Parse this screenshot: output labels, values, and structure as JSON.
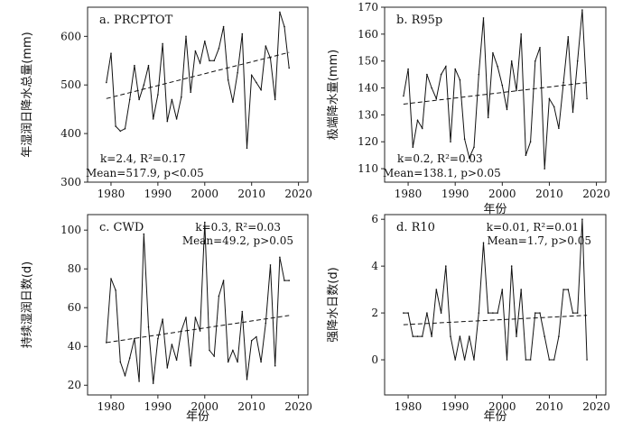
{
  "chart_data": [
    {
      "type": "line",
      "title": "a. PRCPTOT",
      "ylabel": "年湿润日降水总量(mm)",
      "xlabel": "",
      "xlim": [
        1975,
        2022
      ],
      "ylim": [
        300,
        660
      ],
      "xticks": [
        1980,
        1990,
        2000,
        2010,
        2020
      ],
      "yticks": [
        300,
        400,
        500,
        600
      ],
      "stats": [
        "k=2.4, R²=0.17",
        "Mean=517.9, p<0.05"
      ],
      "stats_position": "bottom-left",
      "trend": [
        [
          1979,
          472
        ],
        [
          2018,
          567
        ]
      ],
      "x": [
        1979,
        1980,
        1981,
        1982,
        1983,
        1984,
        1985,
        1986,
        1987,
        1988,
        1989,
        1990,
        1991,
        1992,
        1993,
        1994,
        1995,
        1996,
        1997,
        1998,
        1999,
        2000,
        2001,
        2002,
        2003,
        2004,
        2005,
        2006,
        2007,
        2008,
        2009,
        2010,
        2011,
        2012,
        2013,
        2014,
        2015,
        2016,
        2017,
        2018
      ],
      "series": [
        {
          "values": [
            505,
            565,
            415,
            405,
            410,
            470,
            540,
            470,
            500,
            540,
            430,
            480,
            585,
            425,
            470,
            430,
            475,
            600,
            485,
            570,
            545,
            590,
            550,
            550,
            575,
            620,
            510,
            465,
            525,
            605,
            370,
            520,
            505,
            490,
            580,
            555,
            470,
            650,
            620,
            535
          ]
        }
      ]
    },
    {
      "type": "line",
      "title": "b. R95p",
      "ylabel": "极端降水量(mm)",
      "xlabel": "年份",
      "xlim": [
        1975,
        2022
      ],
      "ylim": [
        105,
        170
      ],
      "xticks": [
        1980,
        1990,
        2000,
        2010,
        2020
      ],
      "yticks": [
        110,
        120,
        130,
        140,
        150,
        160,
        170
      ],
      "stats": [
        "k=0.2, R²=0.03",
        "Mean=138.1, p>0.05"
      ],
      "stats_position": "bottom-left",
      "trend": [
        [
          1979,
          134
        ],
        [
          2018,
          142
        ]
      ],
      "x": [
        1979,
        1980,
        1981,
        1982,
        1983,
        1984,
        1985,
        1986,
        1987,
        1988,
        1989,
        1990,
        1991,
        1992,
        1993,
        1994,
        1995,
        1996,
        1997,
        1998,
        1999,
        2000,
        2001,
        2002,
        2003,
        2004,
        2005,
        2006,
        2007,
        2008,
        2009,
        2010,
        2011,
        2012,
        2013,
        2014,
        2015,
        2016,
        2017,
        2018
      ],
      "series": [
        {
          "values": [
            137,
            147,
            118,
            128,
            125,
            145,
            140,
            136,
            145,
            148,
            120,
            147,
            143,
            121,
            114,
            118,
            145,
            166,
            129,
            153,
            148,
            141,
            132,
            150,
            139,
            160,
            115,
            120,
            150,
            155,
            110,
            136,
            133,
            125,
            142,
            159,
            131,
            150,
            169,
            136
          ]
        }
      ]
    },
    {
      "type": "line",
      "title": "c. CWD",
      "ylabel": "持续湿润日数(d)",
      "xlabel": "年份",
      "xlim": [
        1975,
        2022
      ],
      "ylim": [
        15,
        108
      ],
      "xticks": [
        1980,
        1990,
        2000,
        2010,
        2020
      ],
      "yticks": [
        20,
        40,
        60,
        80,
        100
      ],
      "stats": [
        "k=0.3, R²=0.03",
        "Mean=49.2, p>0.05"
      ],
      "stats_position": "top-right",
      "trend": [
        [
          1979,
          42
        ],
        [
          2018,
          56
        ]
      ],
      "x": [
        1979,
        1980,
        1981,
        1982,
        1983,
        1984,
        1985,
        1986,
        1987,
        1988,
        1989,
        1990,
        1991,
        1992,
        1993,
        1994,
        1995,
        1996,
        1997,
        1998,
        1999,
        2000,
        2001,
        2002,
        2003,
        2004,
        2005,
        2006,
        2007,
        2008,
        2009,
        2010,
        2011,
        2012,
        2013,
        2014,
        2015,
        2016,
        2017,
        2018
      ],
      "series": [
        {
          "values": [
            42,
            75,
            69,
            32,
            25,
            34,
            44,
            22,
            98,
            50,
            21,
            44,
            54,
            29,
            41,
            33,
            48,
            55,
            30,
            55,
            48,
            104,
            38,
            35,
            66,
            74,
            32,
            38,
            32,
            58,
            23,
            43,
            45,
            32,
            52,
            82,
            30,
            86,
            74,
            74
          ]
        }
      ]
    },
    {
      "type": "line",
      "title": "d. R10",
      "ylabel": "强降水日数(d)",
      "xlabel": "年份",
      "xlim": [
        1975,
        2022
      ],
      "ylim": [
        -1.5,
        6.2
      ],
      "xticks": [
        1980,
        1990,
        2000,
        2010,
        2020
      ],
      "yticks": [
        0,
        2,
        4,
        6
      ],
      "stats": [
        "k=0.01, R²=0.01",
        "Mean=1.7, p>0.05"
      ],
      "stats_position": "top-right",
      "trend": [
        [
          1979,
          1.5
        ],
        [
          2018,
          1.9
        ]
      ],
      "x": [
        1979,
        1980,
        1981,
        1982,
        1983,
        1984,
        1985,
        1986,
        1987,
        1988,
        1989,
        1990,
        1991,
        1992,
        1993,
        1994,
        1995,
        1996,
        1997,
        1998,
        1999,
        2000,
        2001,
        2002,
        2003,
        2004,
        2005,
        2006,
        2007,
        2008,
        2009,
        2010,
        2011,
        2012,
        2013,
        2014,
        2015,
        2016,
        2017,
        2018
      ],
      "series": [
        {
          "values": [
            2,
            2,
            1,
            1,
            1,
            2,
            1,
            3,
            2,
            4,
            1,
            0,
            1,
            0,
            1,
            0,
            2,
            5,
            2,
            2,
            2,
            3,
            0,
            4,
            1,
            3,
            0,
            0,
            2,
            2,
            1,
            0,
            0,
            1,
            3,
            3,
            2,
            2,
            6,
            0
          ]
        }
      ]
    }
  ]
}
